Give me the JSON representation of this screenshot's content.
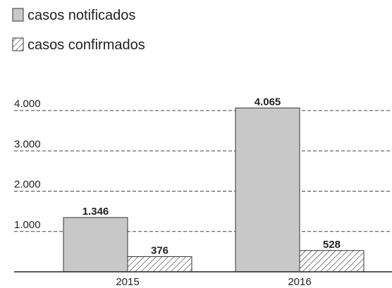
{
  "chart_data": {
    "type": "bar",
    "categories": [
      "2015",
      "2016"
    ],
    "series": [
      {
        "name": "casos notificados",
        "color": "#c8c8c8",
        "hatch": false,
        "values": [
          1346,
          4065
        ],
        "value_labels": [
          "1.346",
          "4.065"
        ]
      },
      {
        "name": "casos confirmados",
        "color": "#ffffff",
        "hatch": true,
        "values": [
          376,
          528
        ],
        "value_labels": [
          "376",
          "528"
        ]
      }
    ],
    "ylim": [
      0,
      4000
    ],
    "yticks": [
      {
        "value": 1000,
        "label": "1.000"
      },
      {
        "value": 2000,
        "label": "2.000"
      },
      {
        "value": 3000,
        "label": "3.000"
      },
      {
        "value": 4000,
        "label": "4.000"
      }
    ],
    "grid": true,
    "legend": "top-left"
  }
}
